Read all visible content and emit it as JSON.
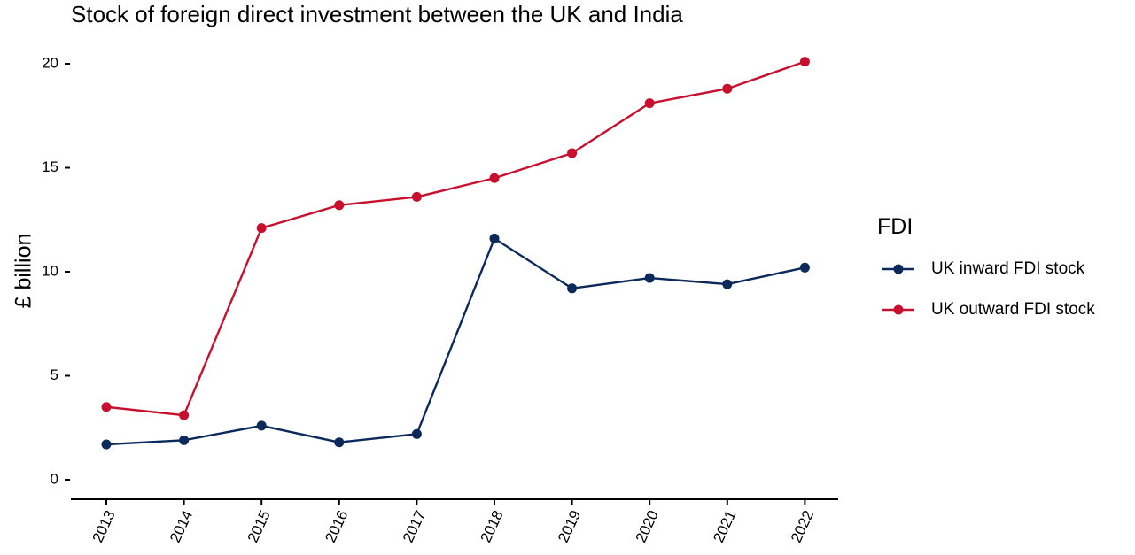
{
  "chart_data": {
    "type": "line",
    "title": "Stock of foreign direct investment between the UK and India",
    "xlabel": "",
    "ylabel": "£ billion",
    "x": [
      "2013",
      "2014",
      "2015",
      "2016",
      "2017",
      "2018",
      "2019",
      "2020",
      "2021",
      "2022"
    ],
    "yticks": [
      "0",
      "5",
      "10",
      "15",
      "20"
    ],
    "ylim": [
      -1,
      21
    ],
    "grid": false,
    "legend": {
      "title": "FDI",
      "position": "right"
    },
    "series": [
      {
        "name": "UK inward FDI stock",
        "color": "#0b2a5b",
        "values": [
          1.7,
          1.9,
          2.6,
          1.8,
          2.2,
          11.6,
          9.2,
          9.7,
          9.4,
          10.2
        ]
      },
      {
        "name": "UK outward FDI stock",
        "color": "#c8102e",
        "values": [
          3.5,
          3.1,
          12.1,
          13.2,
          13.6,
          14.5,
          15.7,
          18.1,
          18.8,
          20.1
        ]
      }
    ]
  }
}
